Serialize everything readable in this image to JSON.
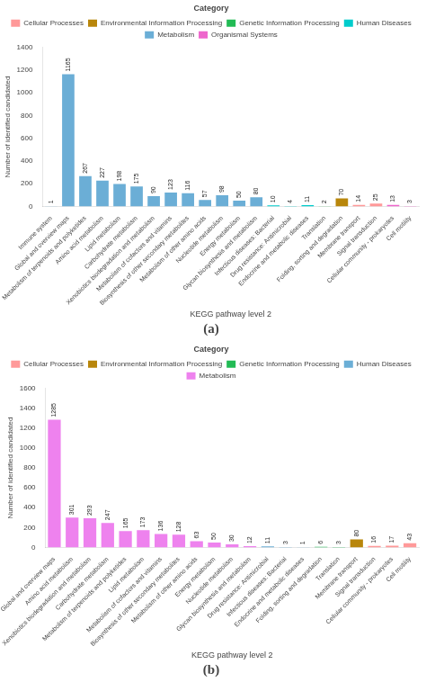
{
  "chart_data": [
    {
      "type": "bar",
      "title": "(a)",
      "categories": [
        "Immune system",
        "Global and overview maps",
        "Metabolism of terpenoids and polyketides",
        "Amino acid metabolism",
        "Lipid metabolism",
        "Carbohydrate metabolism",
        "Xenobiotics biodegradation and metabolism",
        "Metabolism of cofactors and vitamins",
        "Biosynthesis of other secondary metabolites",
        "Metabolism of other amino acids",
        "Nucleotide metabolism",
        "Energy metabolism",
        "Glycan biosynthesis and metabolism",
        "Infectious diseases: Bacterial",
        "Drug resistance: Antimicrobial",
        "Endocrine and metabolic diseases",
        "Translation",
        "Folding, sorting and degradation",
        "Membrane transport",
        "Signal transduction",
        "Cellular community - prokaryotes",
        "Cell motility"
      ],
      "series": [
        {
          "name": "Cellular Processes",
          "color": "#ff9999",
          "values": [
            null,
            null,
            null,
            null,
            null,
            null,
            null,
            null,
            null,
            null,
            null,
            null,
            null,
            null,
            null,
            null,
            null,
            null,
            14,
            25,
            null,
            null
          ]
        },
        {
          "name": "Environmental Information Processing",
          "color": "#b8860b",
          "values": [
            null,
            null,
            null,
            null,
            null,
            null,
            null,
            null,
            null,
            null,
            null,
            null,
            null,
            null,
            null,
            null,
            null,
            70,
            null,
            null,
            null,
            null
          ]
        },
        {
          "name": "Genetic Information Processing",
          "color": "#22bb55",
          "values": [
            null,
            null,
            null,
            null,
            null,
            null,
            null,
            null,
            null,
            null,
            null,
            null,
            null,
            null,
            null,
            null,
            2,
            null,
            null,
            null,
            null,
            null
          ]
        },
        {
          "name": "Human Diseases",
          "color": "#00cccc",
          "values": [
            null,
            null,
            null,
            null,
            null,
            null,
            null,
            null,
            null,
            null,
            null,
            null,
            null,
            10,
            4,
            11,
            null,
            null,
            null,
            null,
            null,
            null
          ]
        },
        {
          "name": "Metabolism",
          "color": "#6baed6",
          "values": [
            1,
            1165,
            267,
            227,
            198,
            175,
            90,
            123,
            116,
            57,
            98,
            50,
            80,
            null,
            null,
            null,
            null,
            null,
            null,
            null,
            null,
            null
          ]
        },
        {
          "name": "Organismal Systems",
          "color": "#ee66cc",
          "values": [
            null,
            null,
            null,
            null,
            null,
            null,
            null,
            null,
            null,
            null,
            null,
            null,
            null,
            null,
            null,
            null,
            null,
            null,
            null,
            null,
            13,
            3
          ]
        }
      ],
      "xlabel": "KEGG pathway level 2",
      "ylabel": "Number of identified candidated",
      "ylim": [
        0,
        1400
      ],
      "yticks": [
        0,
        200,
        400,
        600,
        800,
        1000,
        1200,
        1400
      ],
      "grid": false,
      "legend": "top",
      "legend_title": "Category",
      "data_labels": true
    },
    {
      "type": "bar",
      "title": "(b)",
      "categories": [
        "Global and overview maps",
        "Amino acid metabolism",
        "Xenobiotics biodegradation and metabolism",
        "Carbohydrate metabolism",
        "Metabolism of terpenoids and polyketides",
        "Lipid metabolism",
        "Metabolism of cofactors and vitamins",
        "Biosynthesis of other secondary metabolites",
        "Metabolism of other amino acids",
        "Energy metabolism",
        "Nucleotide metabolism",
        "Glycan biosynthesis and metabolism",
        "Drug resistance: Antimicrobial",
        "Infectious diseases: Bacterial",
        "Endocrine and metabolic diseases",
        "Folding, sorting and degradation",
        "Translation",
        "Membrane transport",
        "Signal transduction",
        "Cellular community - prokaryotes",
        "Cell motility"
      ],
      "series": [
        {
          "name": "Cellular Processes",
          "color": "#ff9999",
          "values": [
            null,
            null,
            null,
            null,
            null,
            null,
            null,
            null,
            null,
            null,
            null,
            null,
            null,
            null,
            null,
            null,
            null,
            null,
            16,
            17,
            43
          ]
        },
        {
          "name": "Environmental Information Processing",
          "color": "#b8860b",
          "values": [
            null,
            null,
            null,
            null,
            null,
            null,
            null,
            null,
            null,
            null,
            null,
            null,
            null,
            null,
            null,
            null,
            null,
            80,
            null,
            null,
            null
          ]
        },
        {
          "name": "Genetic Information Processing",
          "color": "#22bb55",
          "values": [
            null,
            null,
            null,
            null,
            null,
            null,
            null,
            null,
            null,
            null,
            null,
            null,
            null,
            null,
            null,
            6,
            3,
            null,
            null,
            null,
            null
          ]
        },
        {
          "name": "Human Diseases",
          "color": "#6baed6",
          "values": [
            null,
            null,
            null,
            null,
            null,
            null,
            null,
            null,
            null,
            null,
            null,
            null,
            11,
            3,
            1,
            null,
            null,
            null,
            null,
            null,
            null
          ]
        },
        {
          "name": "Metabolism",
          "color": "#ee82ee",
          "values": [
            1285,
            301,
            293,
            247,
            165,
            173,
            136,
            128,
            63,
            50,
            30,
            12,
            null,
            null,
            null,
            null,
            null,
            null,
            null,
            null,
            null
          ]
        }
      ],
      "xlabel": "KEGG pathway level 2",
      "ylabel": "Number of identified candidated",
      "ylim": [
        0,
        1600
      ],
      "yticks": [
        0,
        200,
        400,
        600,
        800,
        1000,
        1200,
        1400,
        1600
      ],
      "grid": false,
      "legend": "top",
      "legend_title": "Category",
      "data_labels": true
    }
  ]
}
